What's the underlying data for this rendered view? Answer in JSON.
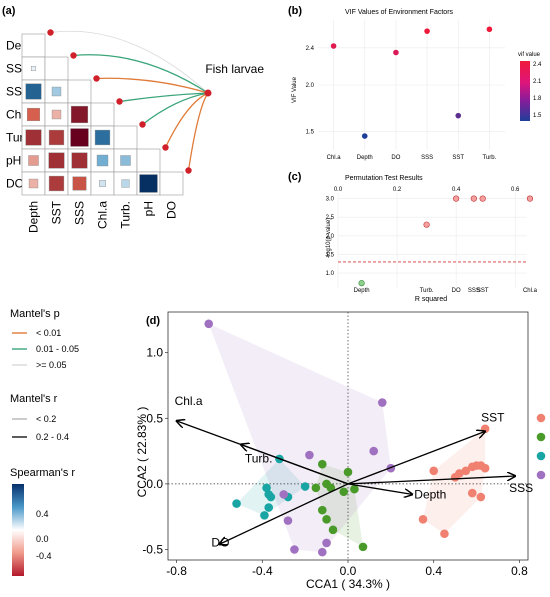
{
  "panels": {
    "a": "(a)",
    "b": "(b)",
    "c": "(c)",
    "d": "(d)"
  },
  "panel_a": {
    "variables": [
      "Depth",
      "SST",
      "SSS",
      "Chl.a",
      "Turb.",
      "pH",
      "DO"
    ],
    "target": "Fish larvae",
    "spearman": [
      [
        null,
        null,
        null,
        null,
        null,
        null,
        null
      ],
      [
        0.05,
        null,
        null,
        null,
        null,
        null,
        null
      ],
      [
        0.6,
        0.2,
        null,
        null,
        null,
        null,
        null
      ],
      [
        -0.4,
        -0.2,
        -0.7,
        null,
        null,
        null,
        null
      ],
      [
        -0.6,
        -0.55,
        -0.8,
        0.55,
        null,
        null,
        null
      ],
      [
        -0.25,
        -0.6,
        -0.6,
        0.3,
        0.25,
        null,
        null
      ],
      [
        -0.2,
        -0.55,
        -0.45,
        0.1,
        0.15,
        0.8,
        null
      ]
    ],
    "mantel_links": [
      {
        "var": "Depth",
        "p": ">= 0.05",
        "r": "< 0.2"
      },
      {
        "var": "SST",
        "p": "0.01 - 0.05",
        "r": "< 0.2"
      },
      {
        "var": "SSS",
        "p": "< 0.01",
        "r": "< 0.2"
      },
      {
        "var": "Chl.a",
        "p": "0.01 - 0.05",
        "r": "< 0.2"
      },
      {
        "var": "Turb.",
        "p": "0.01 - 0.05",
        "r": "< 0.2"
      },
      {
        "var": "pH",
        "p": "< 0.01",
        "r": "< 0.2"
      },
      {
        "var": "DO",
        "p": "< 0.01",
        "r": "< 0.2"
      }
    ]
  },
  "legend": {
    "mantel_p_title": "Mantel's p",
    "mantel_p_items": [
      "< 0.01",
      "0.01 - 0.05",
      ">= 0.05"
    ],
    "mantel_p_colors": [
      "#e07b39",
      "#3aa57a",
      "#d9d9d9"
    ],
    "mantel_r_title": "Mantel's r",
    "mantel_r_items": [
      "< 0.2",
      "0.2 - 0.4"
    ],
    "spearman_title": "Spearman's r",
    "spearman_ticks": [
      "0.4",
      "0.0",
      "-0.4"
    ]
  },
  "chart_data": [
    {
      "type": "scatter",
      "title": "VIF Values of Environment Factors",
      "ylabel": "VIF Value",
      "categories": [
        "Chl.a",
        "Depth",
        "DO",
        "SSS",
        "SST",
        "Turb."
      ],
      "values": [
        2.42,
        1.45,
        2.35,
        2.58,
        1.67,
        2.6
      ],
      "ylim": [
        1.3,
        2.7
      ],
      "yticks": [
        "1.5",
        "2.0",
        "2.4"
      ],
      "legend_title": "vif value",
      "legend_ticks": [
        "2.4",
        "2.1",
        "1.8",
        "1.5"
      ]
    },
    {
      "type": "scatter",
      "title": "Permutation Test Results",
      "xlabel": "R squared",
      "ylabel": "-log10(p-value)",
      "xticks": [
        "0.0",
        "0.2",
        "0.4",
        "0.6"
      ],
      "yticks": [
        "3.0",
        "2.5",
        "2.0",
        "1.5",
        "1.0"
      ],
      "xlim": [
        0.0,
        0.64
      ],
      "ylim": [
        0.6,
        3.15
      ],
      "threshold": 1.3,
      "points": [
        {
          "label": "Depth",
          "x": 0.08,
          "y": 0.73
        },
        {
          "label": "Turb.",
          "x": 0.3,
          "y": 2.3
        },
        {
          "label": "DO",
          "x": 0.4,
          "y": 3.0
        },
        {
          "label": "SSS",
          "x": 0.46,
          "y": 3.0
        },
        {
          "label": "SST",
          "x": 0.49,
          "y": 3.0
        },
        {
          "label": "Chl.a",
          "x": 0.65,
          "y": 3.0
        }
      ]
    },
    {
      "type": "scatter",
      "xlabel": "CCA1 ( 34.3% )",
      "ylabel": "CCA2 ( 22.83% )",
      "xticks": [
        "-0.8",
        "-0.4",
        "0.0",
        "0.4",
        "0.8"
      ],
      "yticks": [
        "1.0",
        "0.5",
        "0.0",
        "-0.5"
      ],
      "xlim": [
        -0.84,
        0.84
      ],
      "ylim": [
        -0.58,
        1.31
      ],
      "group_colors": [
        "#f08070",
        "#4a9a2a",
        "#1aa5a5",
        "#a071c0"
      ],
      "vectors": [
        {
          "label": "SST",
          "x": 0.64,
          "y": 0.4
        },
        {
          "label": "SSS",
          "x": 0.78,
          "y": 0.06
        },
        {
          "label": "Depth",
          "x": 0.3,
          "y": -0.08
        },
        {
          "label": "Chl.a",
          "x": -0.8,
          "y": 0.48
        },
        {
          "label": "Turb.",
          "x": -0.5,
          "y": 0.3
        },
        {
          "label": "DO",
          "x": -0.6,
          "y": -0.46
        }
      ],
      "series": [
        {
          "values": [
            [
              0.64,
              0.42
            ],
            [
              0.4,
              0.1
            ],
            [
              0.5,
              0.05
            ],
            [
              0.52,
              0.08
            ],
            [
              0.55,
              0.1
            ],
            [
              0.58,
              0.13
            ],
            [
              0.6,
              0.14
            ],
            [
              0.62,
              0.14
            ],
            [
              0.64,
              0.12
            ],
            [
              0.58,
              -0.07
            ],
            [
              0.62,
              -0.1
            ],
            [
              0.35,
              -0.27
            ],
            [
              0.45,
              -0.38
            ]
          ]
        },
        {
          "values": [
            [
              -0.12,
              0.15
            ],
            [
              0.0,
              0.09
            ],
            [
              -0.1,
              0.0
            ],
            [
              -0.15,
              -0.03
            ],
            [
              -0.08,
              -0.03
            ],
            [
              -0.12,
              -0.2
            ],
            [
              -0.1,
              -0.27
            ],
            [
              -0.07,
              -0.35
            ],
            [
              0.07,
              -0.48
            ],
            [
              -0.02,
              -0.06
            ],
            [
              0.03,
              -0.04
            ]
          ]
        },
        {
          "values": [
            [
              -0.32,
              0.19
            ],
            [
              -0.52,
              -0.15
            ],
            [
              -0.38,
              -0.03
            ],
            [
              -0.37,
              -0.08
            ],
            [
              -0.36,
              -0.1
            ],
            [
              -0.37,
              -0.18
            ],
            [
              -0.39,
              -0.24
            ],
            [
              -0.2,
              -0.02
            ],
            [
              -0.28,
              -0.1
            ]
          ]
        },
        {
          "values": [
            [
              -0.65,
              1.22
            ],
            [
              0.16,
              0.62
            ],
            [
              0.12,
              0.25
            ],
            [
              0.2,
              0.12
            ],
            [
              -0.18,
              0.22
            ],
            [
              -0.3,
              -0.08
            ],
            [
              -0.25,
              -0.5
            ],
            [
              -0.12,
              -0.52
            ],
            [
              -0.1,
              -0.45
            ],
            [
              -0.28,
              -0.28
            ]
          ]
        }
      ]
    }
  ]
}
